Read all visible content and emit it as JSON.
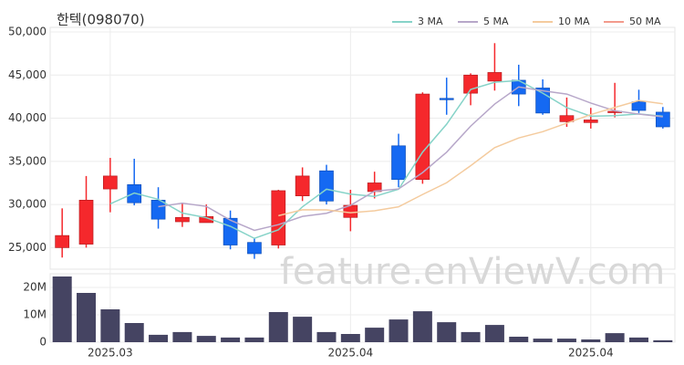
{
  "chart_data": [
    {
      "type": "candlestick",
      "title": "한텍(098070)",
      "open": [
        25000,
        25400,
        31800,
        32300,
        30500,
        28000,
        27900,
        28400,
        25600,
        25300,
        31000,
        33900,
        28500,
        31500,
        36800,
        32900,
        42300,
        42900,
        44300,
        44400,
        43500,
        39600,
        39500,
        40700,
        41900,
        40700
      ],
      "high": [
        29550,
        33300,
        35400,
        35300,
        32000,
        30200,
        30000,
        29300,
        26100,
        31700,
        34300,
        34600,
        31700,
        33800,
        38200,
        43000,
        44700,
        45200,
        48700,
        46200,
        44500,
        42400,
        41200,
        44100,
        43300,
        41300
      ],
      "low": [
        23850,
        25000,
        29100,
        29900,
        27200,
        27400,
        27900,
        24800,
        23700,
        24900,
        30400,
        30000,
        26900,
        30700,
        32000,
        32400,
        40400,
        41500,
        43200,
        41400,
        40400,
        39000,
        38800,
        40100,
        40600,
        38800
      ],
      "close": [
        26400,
        30500,
        33300,
        30200,
        28300,
        28500,
        28600,
        25300,
        24300,
        31600,
        33300,
        30400,
        29900,
        32500,
        32900,
        42800,
        42200,
        45000,
        45300,
        42800,
        40600,
        40300,
        39800,
        40800,
        40900,
        39000
      ],
      "up_color": "#f5282c",
      "down_color": "#1569f2",
      "ylim": [
        22500,
        50000
      ],
      "yticks": [
        {
          "value": 25000,
          "label": "25,000"
        },
        {
          "value": 30000,
          "label": "30,000"
        },
        {
          "value": 35000,
          "label": "35,000"
        },
        {
          "value": 40000,
          "label": "40,000"
        },
        {
          "value": 45000,
          "label": "45,000"
        },
        {
          "value": 50000,
          "label": "50,000"
        }
      ],
      "grid": true,
      "legend": "top-right",
      "series": [
        {
          "name": "3 MA",
          "color": "#86d3c8",
          "values": [
            null,
            null,
            30070,
            31330,
            30600,
            29000,
            28470,
            27470,
            26070,
            27070,
            29730,
            31770,
            31200,
            30930,
            31770,
            36070,
            39300,
            43330,
            44170,
            44370,
            42900,
            41230,
            40230,
            40300,
            40500,
            40230
          ]
        },
        {
          "name": "5 MA",
          "color": "#b7a7c9",
          "values": [
            null,
            null,
            null,
            null,
            29740,
            30160,
            29780,
            28180,
            27000,
            27660,
            28620,
            28980,
            29900,
            31540,
            31800,
            33700,
            36060,
            39080,
            41640,
            43620,
            43180,
            42800,
            41760,
            40860,
            40480,
            40160
          ]
        },
        {
          "name": "10 MA",
          "color": "#f4cb9e",
          "values": [
            null,
            null,
            null,
            null,
            null,
            null,
            null,
            null,
            null,
            28700,
            29390,
            29380,
            29040,
            29270,
            29730,
            31160,
            32520,
            34490,
            36590,
            37710,
            38440,
            39430,
            40420,
            41250,
            42050,
            41670
          ]
        },
        {
          "name": "50 MA",
          "color": "#f39a8c",
          "values": [
            null,
            null,
            null,
            null,
            null,
            null,
            null,
            null,
            null,
            null,
            null,
            null,
            null,
            null,
            null,
            null,
            null,
            null,
            null,
            null,
            null,
            null,
            null,
            null,
            null,
            null
          ]
        }
      ],
      "watermark": "feature.enViewV.com"
    },
    {
      "type": "bar",
      "categories": [
        null,
        null,
        "2025.03",
        null,
        null,
        null,
        null,
        null,
        null,
        null,
        null,
        null,
        "2025.04",
        null,
        null,
        null,
        null,
        null,
        null,
        null,
        null,
        null,
        "2025.04",
        null,
        null,
        null
      ],
      "values": [
        24000000,
        18000000,
        12000000,
        7000000,
        2700000,
        3700000,
        2300000,
        1700000,
        1700000,
        11000000,
        9300000,
        3700000,
        3000000,
        5300000,
        8300000,
        11300000,
        7300000,
        3700000,
        6300000,
        2000000,
        1300000,
        1300000,
        1000000,
        3300000,
        1700000,
        700000
      ],
      "color": "#454462",
      "ylim": [
        0,
        25000000
      ],
      "yticks": [
        0,
        {
          "value": 10000000,
          "label": "10M"
        },
        {
          "value": 20000000,
          "label": "20M"
        }
      ],
      "grid": true
    }
  ]
}
